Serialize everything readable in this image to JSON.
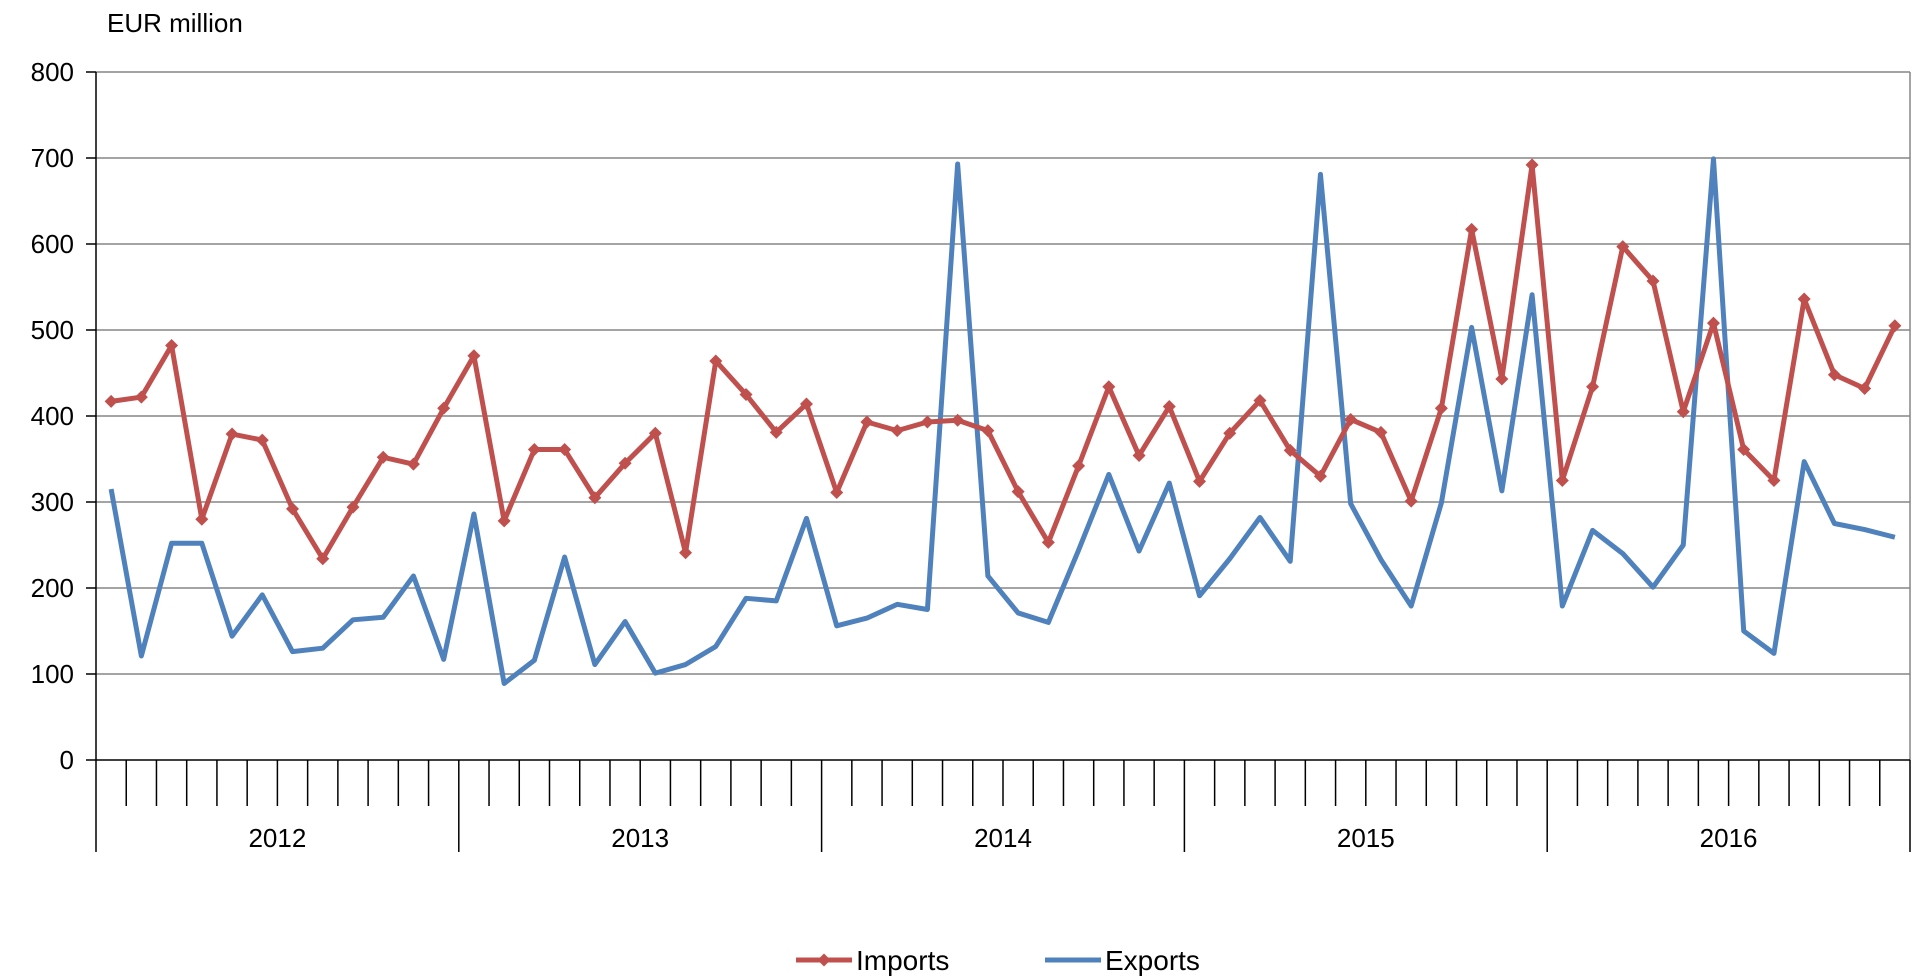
{
  "chart_data": {
    "type": "line",
    "ylabel": "EUR million",
    "ylim": [
      0,
      800
    ],
    "yticks": [
      0,
      100,
      200,
      300,
      400,
      500,
      600,
      700,
      800
    ],
    "years": [
      "2012",
      "2013",
      "2014",
      "2015",
      "2016"
    ],
    "months_per_year": 12,
    "grid": true,
    "legend_position": "bottom",
    "series": [
      {
        "name": "Imports",
        "color": "#C0504D",
        "marker": "diamond",
        "values": [
          417,
          422,
          482,
          280,
          379,
          372,
          292,
          234,
          294,
          352,
          344,
          409,
          470,
          278,
          361,
          361,
          305,
          345,
          380,
          241,
          464,
          425,
          381,
          414,
          311,
          393,
          383,
          393,
          395,
          383,
          312,
          253,
          342,
          434,
          354,
          411,
          324,
          380,
          418,
          360,
          330,
          396,
          381,
          301,
          409,
          617,
          443,
          692,
          325,
          434,
          597,
          557,
          405,
          508,
          361,
          325,
          536,
          448,
          432,
          505
        ]
      },
      {
        "name": "Exports",
        "color": "#4F81BD",
        "marker": "none",
        "values": [
          315,
          121,
          252,
          252,
          144,
          192,
          126,
          130,
          163,
          166,
          214,
          117,
          286,
          89,
          116,
          236,
          111,
          161,
          101,
          111,
          132,
          188,
          185,
          281,
          156,
          165,
          181,
          175,
          693,
          214,
          171,
          160,
          244,
          332,
          243,
          322,
          191,
          234,
          282,
          231,
          681,
          298,
          233,
          179,
          299,
          503,
          313,
          541,
          179,
          267,
          240,
          201,
          250,
          699,
          150,
          124,
          347,
          275,
          268,
          259
        ]
      }
    ]
  }
}
